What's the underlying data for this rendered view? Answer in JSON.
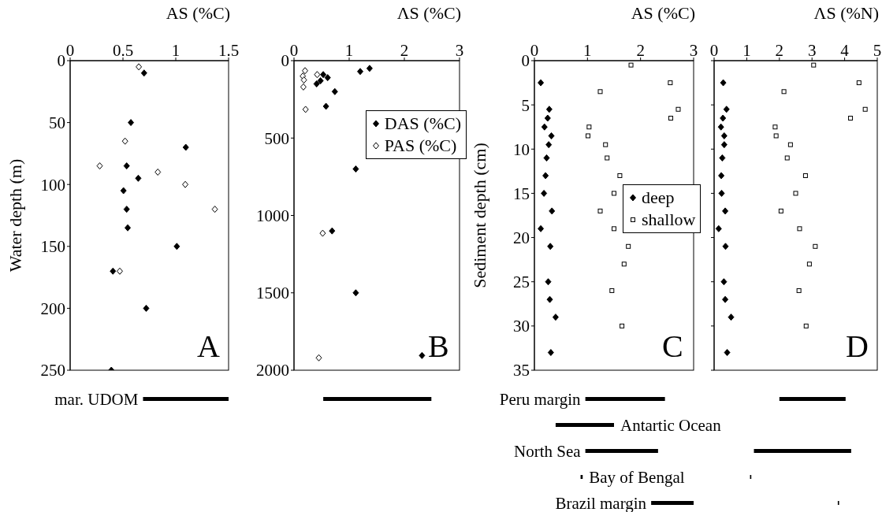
{
  "chart_data": [
    {
      "type": "scatter",
      "xlabel": "AS (%C)",
      "ylabel": "Water depth (m)",
      "xlim": [
        0,
        1.5
      ],
      "xticks": [
        0,
        0.5,
        1,
        1.5
      ],
      "ylim": [
        250,
        0
      ],
      "yticks": [
        0,
        50,
        100,
        150,
        200,
        250
      ],
      "annotations": [
        "A"
      ],
      "series": [
        {
          "color": "#000000",
          "marker": "diamond",
          "x": [
            0.7,
            0.575,
            1.095,
            0.535,
            0.645,
            0.505,
            0.535,
            0.545,
            1.01,
            0.405,
            0.72,
            0.39
          ],
          "values": [
            10,
            50,
            70,
            85,
            95,
            105,
            120,
            135,
            150,
            170,
            200,
            250
          ]
        },
        {
          "color": "#ffffff",
          "marker": "diamond",
          "x": [
            0.65,
            0.52,
            0.28,
            0.83,
            1.09,
            1.37,
            0.47
          ],
          "values": [
            5,
            65,
            85,
            90,
            100,
            120,
            170
          ]
        }
      ]
    },
    {
      "type": "scatter",
      "xlabel": "ΛS (%C)",
      "xlim": [
        0,
        3
      ],
      "xticks": [
        0,
        1,
        2,
        3
      ],
      "ylim": [
        2000,
        0
      ],
      "yticks": [
        0,
        500,
        1000,
        1500,
        2000
      ],
      "annotations": [
        "B"
      ],
      "legend": "top right",
      "series": [
        {
          "name": "DAS (%C)",
          "color": "#000000",
          "marker": "diamond",
          "x": [
            1.37,
            1.2,
            0.53,
            0.61,
            0.48,
            0.41,
            0.74,
            0.58,
            1.12,
            0.69,
            1.12,
            2.32
          ],
          "values": [
            50,
            70,
            90,
            110,
            130,
            150,
            200,
            295,
            700,
            1100,
            1500,
            1905
          ]
        },
        {
          "name": "PAS (%C)",
          "color": "#ffffff",
          "marker": "diamond",
          "x": [
            0.2,
            0.16,
            0.18,
            0.17,
            0.42,
            0.21,
            0.52,
            0.45
          ],
          "values": [
            65,
            100,
            125,
            170,
            90,
            315,
            1115,
            1920
          ]
        }
      ]
    },
    {
      "type": "scatter",
      "xlabel": "AS (%C)",
      "ylabel": "Sediment depth (cm)",
      "xlim": [
        0,
        3
      ],
      "xticks": [
        0,
        1,
        2,
        3
      ],
      "ylim": [
        35,
        0
      ],
      "yticks": [
        0,
        5,
        10,
        15,
        20,
        25,
        30,
        35
      ],
      "annotations": [
        "C"
      ],
      "legend": "right",
      "series": [
        {
          "name": "deep",
          "color": "#000000",
          "marker": "diamond",
          "x": [
            0.12,
            0.28,
            0.25,
            0.19,
            0.32,
            0.27,
            0.23,
            0.21,
            0.18,
            0.33,
            0.12,
            0.3,
            0.26,
            0.29,
            0.4,
            0.31
          ],
          "values": [
            2.5,
            5.5,
            6.5,
            7.5,
            8.5,
            9.5,
            11,
            13,
            15,
            17,
            19,
            21,
            25,
            27,
            29,
            33
          ]
        },
        {
          "name": "shallow",
          "color": "#ffffff",
          "marker": "square",
          "x": [
            1.82,
            2.56,
            1.24,
            2.71,
            2.57,
            1.03,
            1.01,
            1.34,
            1.37,
            1.61,
            1.5,
            1.24,
            1.5,
            1.77,
            1.69,
            1.46,
            1.65
          ],
          "values": [
            0.5,
            2.5,
            3.5,
            5.5,
            6.5,
            7.5,
            8.5,
            9.5,
            11,
            13,
            15,
            17,
            19,
            21,
            23,
            26,
            30
          ]
        }
      ]
    },
    {
      "type": "scatter",
      "xlabel": "ΛS (%N)",
      "xlim": [
        0,
        5
      ],
      "xticks": [
        0,
        1,
        2,
        3,
        4,
        5
      ],
      "ylim": [
        35,
        0
      ],
      "yticks": [
        0,
        5,
        10,
        15,
        20,
        25,
        30,
        35
      ],
      "tick_labels": "x",
      "annotations": [
        "D"
      ],
      "series": [
        {
          "color": "#000000",
          "marker": "diamond",
          "x": [
            0.28,
            0.38,
            0.27,
            0.21,
            0.31,
            0.31,
            0.25,
            0.22,
            0.23,
            0.34,
            0.14,
            0.35,
            0.3,
            0.34,
            0.52,
            0.4
          ],
          "values": [
            2.5,
            5.5,
            6.5,
            7.5,
            8.5,
            9.5,
            11,
            13,
            15,
            17,
            19,
            21,
            25,
            27,
            29,
            33
          ]
        },
        {
          "color": "#ffffff",
          "marker": "square",
          "x": [
            3.05,
            4.44,
            2.14,
            4.63,
            4.18,
            1.87,
            1.9,
            2.34,
            2.24,
            2.8,
            2.5,
            2.05,
            2.62,
            3.1,
            2.92,
            2.6,
            2.82
          ],
          "values": [
            0.5,
            2.5,
            3.5,
            5.5,
            6.5,
            7.5,
            8.5,
            9.5,
            11,
            13,
            15,
            17,
            19,
            21,
            23,
            26,
            30
          ]
        }
      ]
    },
    {
      "type": "bar",
      "orientation": "horizontal",
      "categories": [
        "mar. UDOM"
      ],
      "base": [
        0.69
      ],
      "values": [
        0.81
      ],
      "color": "#000000",
      "xlim": [
        0,
        1.5
      ],
      "tick_labels": "y"
    },
    {
      "type": "bar",
      "orientation": "horizontal",
      "categories": [
        null
      ],
      "base": [
        0.53
      ],
      "values": [
        1.96
      ],
      "color": "#000000",
      "xlim": [
        0,
        3
      ],
      "tick_labels": false
    },
    {
      "type": "bar",
      "orientation": "horizontal",
      "categories": [
        "Peru margin",
        "Antartic Ocean",
        "North Sea",
        "Bay of Bengal",
        "Brazil margin"
      ],
      "base": [
        0.96,
        0.4,
        0.96,
        0.87,
        2.2
      ],
      "values": [
        1.5,
        1.1,
        1.37,
        0.04,
        0.8
      ],
      "color": "#000000",
      "xlim": [
        0,
        3
      ],
      "tick_labels": "y"
    },
    {
      "type": "bar",
      "orientation": "horizontal",
      "categories": [
        null,
        null,
        null,
        null,
        null
      ],
      "base": [
        2.0,
        null,
        1.22,
        1.1,
        3.79
      ],
      "values": [
        2.03,
        null,
        2.98,
        0.04,
        0.04
      ],
      "color": "#000000",
      "xlim": [
        0,
        5
      ],
      "tick_labels": false
    }
  ]
}
